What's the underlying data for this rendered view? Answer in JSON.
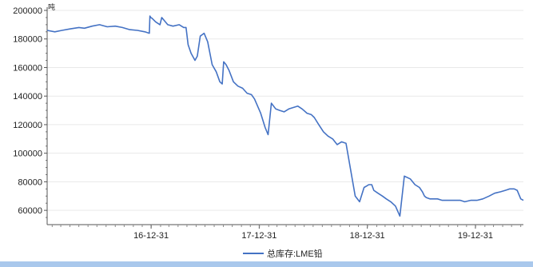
{
  "chart_data": {
    "type": "line",
    "title": "",
    "xlabel": "",
    "ylabel": "",
    "unit": "吨",
    "ylim": [
      50000,
      200000
    ],
    "y_ticks": [
      60000,
      80000,
      100000,
      120000,
      140000,
      160000,
      180000,
      200000
    ],
    "y_tick_labels": [
      "60000",
      "80000",
      "100000",
      "120000",
      "140000",
      "160000",
      "180000",
      "200000"
    ],
    "xlim": [
      "2016-01-15",
      "2020-06-10"
    ],
    "x_ticks": [
      "2016-12-31",
      "2017-12-31",
      "2018-12-31",
      "2019-12-31"
    ],
    "x_tick_labels": [
      "16-12-31",
      "17-12-31",
      "18-12-31",
      "19-12-31"
    ],
    "grid": true,
    "legend": "bottom-center",
    "series": [
      {
        "name": "总库存:LME铅",
        "color": "#4472c4",
        "x": [
          "2016-01-15",
          "2016-02-10",
          "2016-03-05",
          "2016-04-01",
          "2016-05-01",
          "2016-05-20",
          "2016-06-15",
          "2016-07-10",
          "2016-08-05",
          "2016-09-01",
          "2016-09-25",
          "2016-10-20",
          "2016-11-15",
          "2016-12-10",
          "2016-12-25",
          "2016-12-27",
          "2016-12-30",
          "2017-01-03",
          "2017-01-15",
          "2017-01-30",
          "2017-02-05",
          "2017-02-25",
          "2017-03-15",
          "2017-04-05",
          "2017-04-20",
          "2017-04-28",
          "2017-05-05",
          "2017-05-15",
          "2017-05-28",
          "2017-06-05",
          "2017-06-15",
          "2017-06-28",
          "2017-07-10",
          "2017-07-25",
          "2017-08-08",
          "2017-08-20",
          "2017-08-28",
          "2017-09-02",
          "2017-09-10",
          "2017-09-20",
          "2017-10-05",
          "2017-10-20",
          "2017-11-05",
          "2017-11-20",
          "2017-12-05",
          "2017-12-15",
          "2018-01-05",
          "2018-01-20",
          "2018-01-30",
          "2018-02-10",
          "2018-02-25",
          "2018-03-10",
          "2018-03-25",
          "2018-04-10",
          "2018-04-25",
          "2018-05-10",
          "2018-05-25",
          "2018-06-10",
          "2018-06-25",
          "2018-07-05",
          "2018-07-20",
          "2018-08-05",
          "2018-08-20",
          "2018-09-05",
          "2018-09-20",
          "2018-10-05",
          "2018-10-20",
          "2018-11-05",
          "2018-11-20",
          "2018-12-05",
          "2018-12-20",
          "2018-12-28",
          "2019-01-05",
          "2019-01-15",
          "2019-01-22",
          "2019-02-05",
          "2019-02-20",
          "2019-03-05",
          "2019-03-20",
          "2019-04-05",
          "2019-04-20",
          "2019-05-05",
          "2019-05-25",
          "2019-06-10",
          "2019-06-25",
          "2019-07-05",
          "2019-07-12",
          "2019-07-18",
          "2019-07-30",
          "2019-08-10",
          "2019-08-25",
          "2019-09-10",
          "2019-09-25",
          "2019-10-10",
          "2019-10-25",
          "2019-11-10",
          "2019-11-25",
          "2019-12-15",
          "2020-01-05",
          "2020-01-25",
          "2020-02-15",
          "2020-03-05",
          "2020-03-25",
          "2020-04-10",
          "2020-04-25",
          "2020-05-10",
          "2020-05-20",
          "2020-06-01",
          "2020-06-10"
        ],
        "values": [
          186000,
          185000,
          186000,
          187000,
          188000,
          187500,
          189000,
          190000,
          188500,
          189000,
          188000,
          186500,
          186000,
          185000,
          184000,
          196000,
          195000,
          194500,
          192000,
          190000,
          195000,
          190000,
          189000,
          190000,
          188000,
          188000,
          176000,
          170000,
          165000,
          168000,
          182000,
          184000,
          178000,
          162000,
          157000,
          150000,
          148500,
          164000,
          162000,
          158000,
          150000,
          147000,
          145500,
          142000,
          141000,
          138000,
          128000,
          118000,
          113000,
          135000,
          131000,
          130000,
          129000,
          131000,
          132000,
          133000,
          131000,
          128000,
          127000,
          125000,
          120000,
          115000,
          112000,
          110000,
          106000,
          108000,
          107000,
          88000,
          70000,
          66000,
          76000,
          77000,
          78000,
          78000,
          74000,
          72000,
          70000,
          68000,
          66000,
          63000,
          56000,
          84000,
          82000,
          78000,
          76000,
          73000,
          70000,
          69000,
          68000,
          68000,
          68000,
          67000,
          67000,
          67000,
          67000,
          67000,
          66000,
          67000,
          67000,
          68000,
          70000,
          72000,
          73000,
          74000,
          75000,
          75000,
          74000,
          68000,
          67000
        ]
      }
    ]
  }
}
